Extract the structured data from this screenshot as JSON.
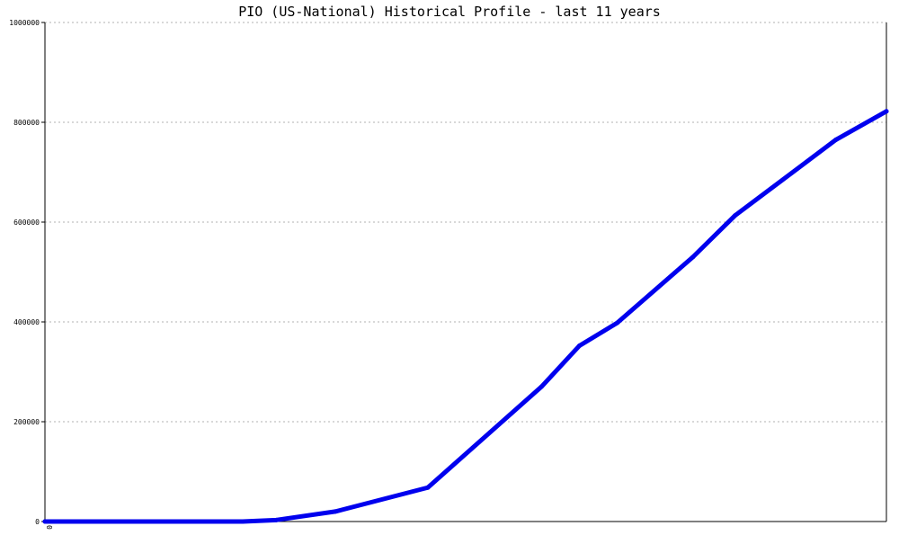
{
  "chart_data": {
    "type": "line",
    "title": "PIO (US-National) Historical Profile - last 11 years",
    "xlabel": "",
    "ylabel": "",
    "ylim": [
      0,
      1000000
    ],
    "y_ticks": [
      {
        "value": 0,
        "label": "0"
      },
      {
        "value": 200000,
        "label": "200000"
      },
      {
        "value": 400000,
        "label": "400000"
      },
      {
        "value": 600000,
        "label": "600000"
      },
      {
        "value": 800000,
        "label": "800000"
      },
      {
        "value": 1000000,
        "label": "1000000"
      }
    ],
    "x_tick_labels": [
      "0"
    ],
    "grid": true,
    "series": [
      {
        "color": "#0000ee",
        "x": [
          0,
          0.118,
          0.235,
          0.275,
          0.345,
          0.455,
          0.59,
          0.635,
          0.68,
          0.77,
          0.82,
          0.94,
          1.0
        ],
        "values": [
          0,
          0,
          0,
          3000,
          20000,
          68000,
          270000,
          352000,
          398000,
          530000,
          613000,
          765000,
          822000
        ]
      }
    ]
  }
}
